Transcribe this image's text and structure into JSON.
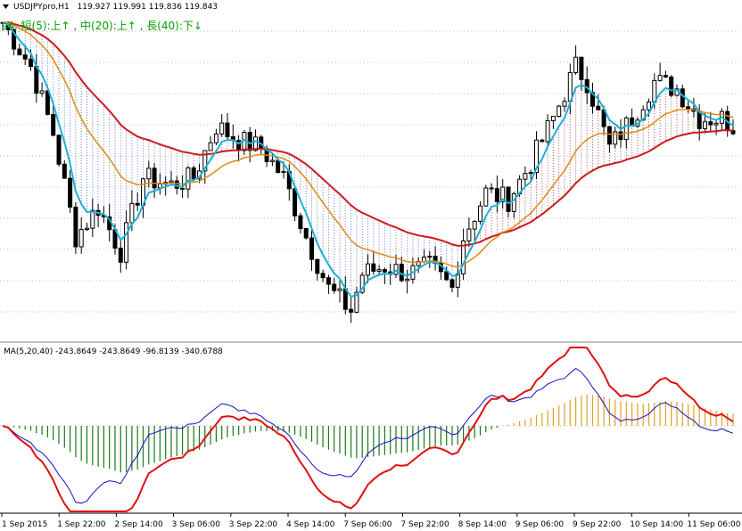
{
  "header": {
    "symbol": "USDJPYpro,H1",
    "ohlc": "119.927 119.991 119.836 119.843",
    "signal": "s4, 短(5):上↑ , 中(20):上↑ , 長(40):下↓"
  },
  "indicator": {
    "label": "MA(5,20,40) -243.8649 -243.8649 -96.8139 -340.6788"
  },
  "colors": {
    "candle": "#000000",
    "ma_short": "#1ab0d8",
    "ma_mid": "#e08a10",
    "ma_long": "#cc1a1a",
    "cloud_blue": "#3050c0",
    "cloud_red": "#8a1020",
    "hist_green": "#1a7a1a",
    "hist_orange": "#e0a020",
    "diff_blue": "#1010c0",
    "diff_red": "#e01010",
    "grid": "#c0c0c0"
  },
  "chart_data": {
    "type": "line",
    "title": "USDJPYpro,H1",
    "timeframe": "H1",
    "x_ticks": [
      "1 Sep 2015",
      "1 Sep 22:00",
      "2 Sep 14:00",
      "3 Sep 06:00",
      "3 Sep 22:00",
      "4 Sep 14:00",
      "7 Sep 06:00",
      "7 Sep 22:00",
      "8 Sep 14:00",
      "9 Sep 06:00",
      "9 Sep 22:00",
      "10 Sep 14:00",
      "11 Sep 06:00"
    ],
    "price_ylim": [
      118.0,
      120.3
    ],
    "price_key_points": [
      [
        0,
        120.15
      ],
      [
        5,
        119.85
      ],
      [
        9,
        119.4
      ],
      [
        13,
        118.7
      ],
      [
        17,
        118.9
      ],
      [
        21,
        118.6
      ],
      [
        25,
        119.1
      ],
      [
        30,
        119.05
      ],
      [
        34,
        119.1
      ],
      [
        38,
        119.45
      ],
      [
        42,
        119.35
      ],
      [
        46,
        119.3
      ],
      [
        50,
        119.1
      ],
      [
        54,
        118.7
      ],
      [
        58,
        118.35
      ],
      [
        62,
        118.2
      ],
      [
        64,
        118.45
      ],
      [
        68,
        118.5
      ],
      [
        72,
        118.45
      ],
      [
        76,
        118.5
      ],
      [
        80,
        118.35
      ],
      [
        82,
        118.7
      ],
      [
        86,
        119.0
      ],
      [
        90,
        118.95
      ],
      [
        94,
        119.2
      ],
      [
        98,
        119.5
      ],
      [
        102,
        119.85
      ],
      [
        104,
        119.75
      ],
      [
        108,
        119.3
      ],
      [
        112,
        119.5
      ],
      [
        116,
        119.75
      ],
      [
        120,
        119.7
      ],
      [
        124,
        119.5
      ],
      [
        128,
        119.5
      ],
      [
        130,
        119.45
      ]
    ],
    "ma_periods": [
      5,
      20,
      40
    ],
    "indicator": {
      "name": "MA(5,20,40)",
      "values": [
        -243.8649,
        -243.8649,
        -96.8139,
        -340.6788
      ]
    }
  }
}
